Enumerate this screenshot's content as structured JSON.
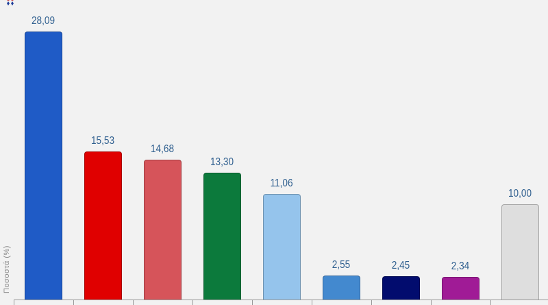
{
  "chart_data": {
    "type": "bar",
    "title": "",
    "xlabel": "",
    "ylabel": "Ποσοστά (%)",
    "categories": [
      "",
      "",
      "",
      "",
      "",
      "",
      "",
      "",
      ""
    ],
    "values": [
      28.09,
      15.53,
      14.68,
      13.3,
      11.06,
      2.55,
      2.45,
      2.34,
      10.0
    ],
    "value_labels": [
      "28,09",
      "15,53",
      "14,68",
      "13,30",
      "11,06",
      "2,55",
      "2,45",
      "2,34",
      "10,00"
    ],
    "colors": [
      "#1f5bc6",
      "#e00000",
      "#d6545a",
      "#0c7a3c",
      "#95c4ec",
      "#4389cf",
      "#020c6e",
      "#a01b96",
      "#dedede"
    ],
    "ylim": [
      0,
      30
    ],
    "grid": false,
    "legend": "none"
  },
  "labels": {
    "ylabel": "Ποσοστά (%)"
  }
}
